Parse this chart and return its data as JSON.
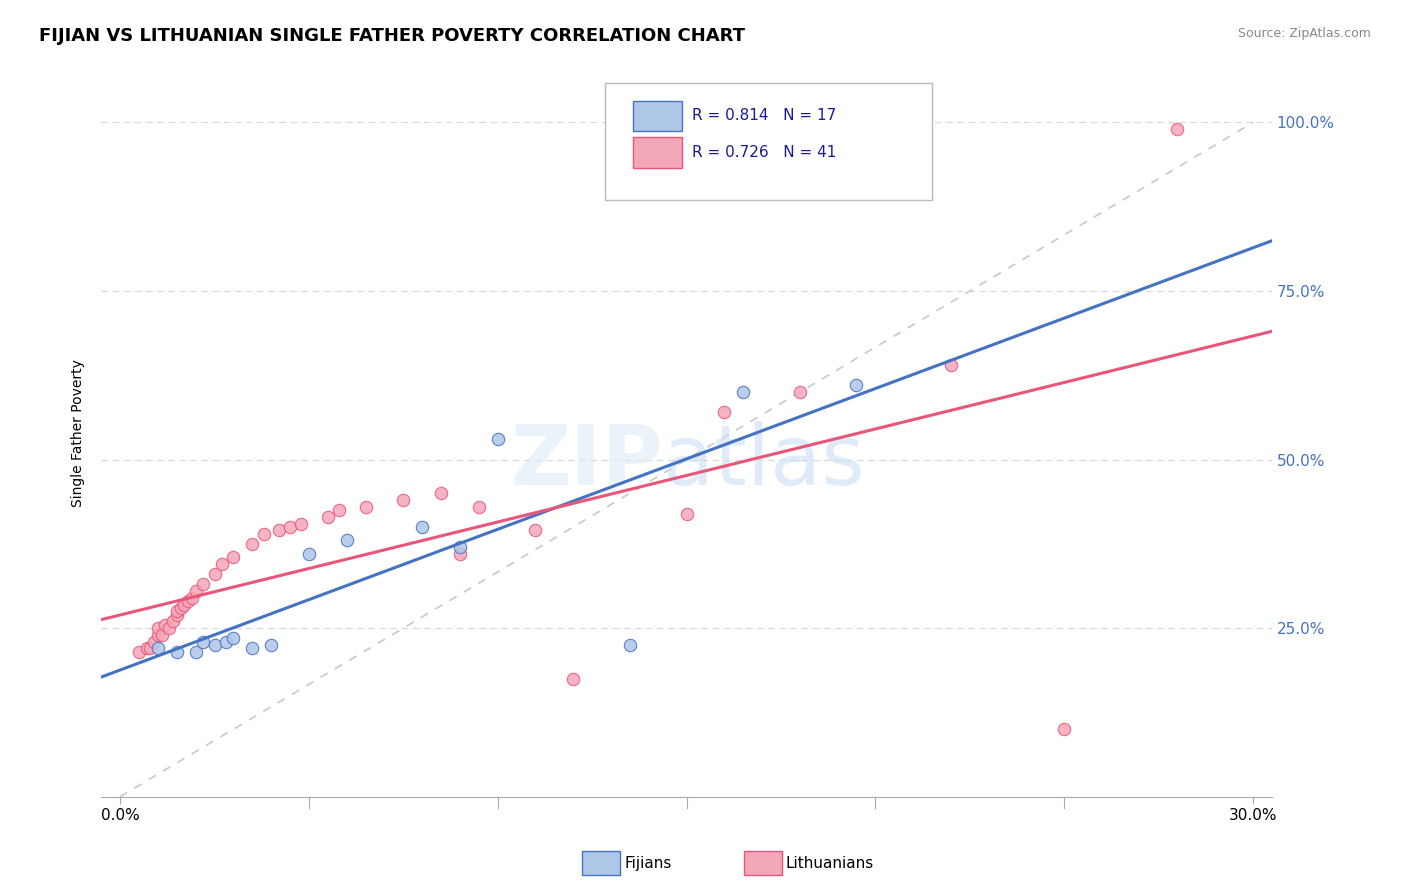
{
  "title": "FIJIAN VS LITHUANIAN SINGLE FATHER POVERTY CORRELATION CHART",
  "source": "Source: ZipAtlas.com",
  "ylabel": "Single Father Poverty",
  "y_ticks": [
    0.25,
    0.5,
    0.75,
    1.0
  ],
  "y_tick_labels": [
    "25.0%",
    "50.0%",
    "75.0%",
    "100.0%"
  ],
  "x_tick_left": "0.0%",
  "x_tick_right": "30.0%",
  "fijian_color": "#aec6e8",
  "fijian_line_color": "#4472c4",
  "lithuanian_color": "#f4a7b9",
  "lithuanian_line_color": "#e8567a",
  "ref_line_color": "#c8c8c8",
  "tick_label_color": "#4472c4",
  "R_fijian": 0.814,
  "N_fijian": 17,
  "R_lithuanian": 0.726,
  "N_lithuanian": 41,
  "fijians_points": [
    [
      0.01,
      0.22
    ],
    [
      0.015,
      0.215
    ],
    [
      0.02,
      0.215
    ],
    [
      0.022,
      0.23
    ],
    [
      0.025,
      0.225
    ],
    [
      0.028,
      0.23
    ],
    [
      0.03,
      0.235
    ],
    [
      0.035,
      0.22
    ],
    [
      0.04,
      0.225
    ],
    [
      0.05,
      0.36
    ],
    [
      0.06,
      0.38
    ],
    [
      0.08,
      0.4
    ],
    [
      0.09,
      0.37
    ],
    [
      0.1,
      0.53
    ],
    [
      0.135,
      0.225
    ],
    [
      0.165,
      0.6
    ],
    [
      0.195,
      0.61
    ]
  ],
  "lithuanian_points": [
    [
      0.005,
      0.215
    ],
    [
      0.007,
      0.22
    ],
    [
      0.008,
      0.22
    ],
    [
      0.009,
      0.23
    ],
    [
      0.01,
      0.24
    ],
    [
      0.01,
      0.25
    ],
    [
      0.011,
      0.24
    ],
    [
      0.012,
      0.255
    ],
    [
      0.013,
      0.25
    ],
    [
      0.014,
      0.26
    ],
    [
      0.015,
      0.27
    ],
    [
      0.015,
      0.275
    ],
    [
      0.016,
      0.28
    ],
    [
      0.017,
      0.285
    ],
    [
      0.018,
      0.29
    ],
    [
      0.019,
      0.295
    ],
    [
      0.02,
      0.305
    ],
    [
      0.022,
      0.315
    ],
    [
      0.025,
      0.33
    ],
    [
      0.027,
      0.345
    ],
    [
      0.03,
      0.355
    ],
    [
      0.035,
      0.375
    ],
    [
      0.038,
      0.39
    ],
    [
      0.042,
      0.395
    ],
    [
      0.045,
      0.4
    ],
    [
      0.048,
      0.405
    ],
    [
      0.055,
      0.415
    ],
    [
      0.058,
      0.425
    ],
    [
      0.065,
      0.43
    ],
    [
      0.075,
      0.44
    ],
    [
      0.085,
      0.45
    ],
    [
      0.09,
      0.36
    ],
    [
      0.095,
      0.43
    ],
    [
      0.11,
      0.395
    ],
    [
      0.12,
      0.175
    ],
    [
      0.15,
      0.42
    ],
    [
      0.16,
      0.57
    ],
    [
      0.18,
      0.6
    ],
    [
      0.22,
      0.64
    ],
    [
      0.28,
      0.99
    ],
    [
      0.25,
      0.1
    ]
  ]
}
